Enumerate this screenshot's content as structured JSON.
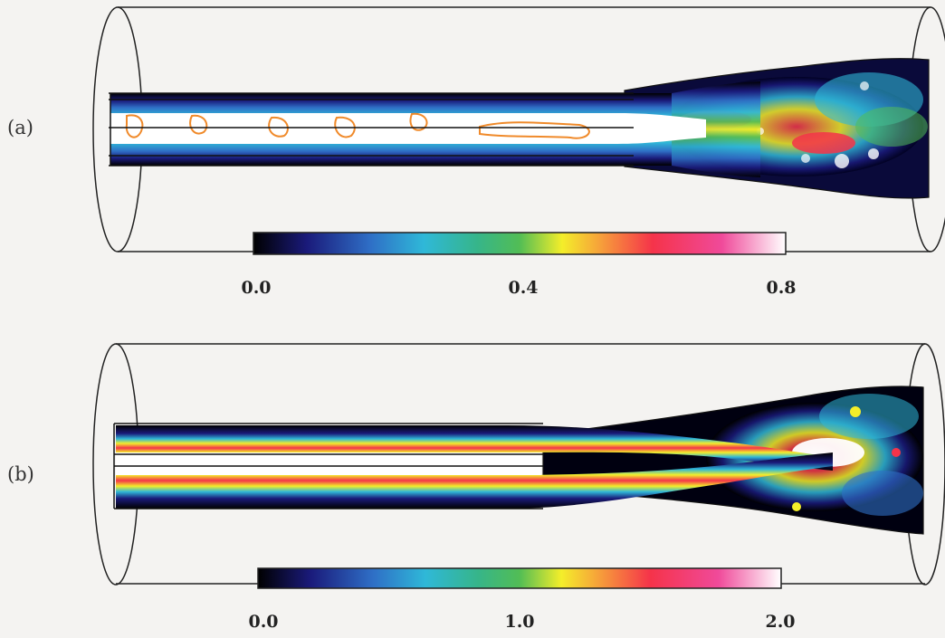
{
  "panels": [
    {
      "label": "(a)",
      "colorbar_ticks": [
        "0.0",
        "0.4",
        "0.8"
      ],
      "colorbar_stops": [
        "#000000",
        "#1a1a7a",
        "#2f6fc6",
        "#2fb8d8",
        "#36b58a",
        "#52bd55",
        "#f4ee2a",
        "#f6a23a",
        "#f5334a",
        "#f04a9a",
        "#ffffff"
      ]
    },
    {
      "label": "(b)",
      "colorbar_ticks": [
        "0.0",
        "1.0",
        "2.0"
      ],
      "colorbar_stops": [
        "#000000",
        "#1a1a7a",
        "#2f6fc6",
        "#2fb8d8",
        "#36b58a",
        "#52bd55",
        "#f4ee2a",
        "#f6a23a",
        "#f5334a",
        "#f04a9a",
        "#ffffff"
      ]
    }
  ]
}
